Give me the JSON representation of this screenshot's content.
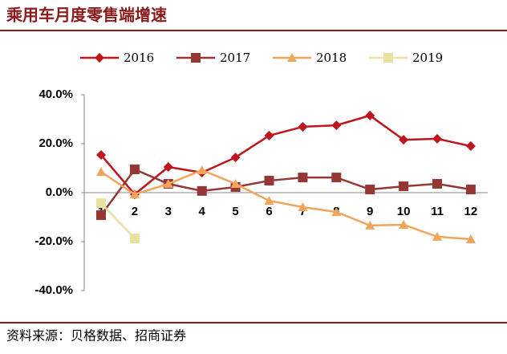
{
  "chart_data": {
    "type": "line",
    "title": "乘用车月度零售端增速",
    "source": "资料来源：贝格数据、招商证券",
    "categories": [
      "1",
      "2",
      "3",
      "4",
      "5",
      "6",
      "7",
      "8",
      "9",
      "10",
      "11",
      "12"
    ],
    "series": [
      {
        "name": "2016",
        "color": "#c0151c",
        "marker": "diamond",
        "values": [
          15.4,
          -0.7,
          10.5,
          8.2,
          14.4,
          23.3,
          26.9,
          27.5,
          31.5,
          21.6,
          22.0,
          19.0
        ]
      },
      {
        "name": "2017",
        "color": "#953735",
        "marker": "square",
        "values": [
          -9.2,
          9.5,
          3.6,
          0.7,
          2.3,
          4.9,
          6.2,
          6.2,
          1.3,
          2.6,
          3.6,
          1.3
        ]
      },
      {
        "name": "2018",
        "color": "#f0a55a",
        "marker": "triangle",
        "values": [
          8.5,
          -0.7,
          3.6,
          9.2,
          3.6,
          -3.3,
          -5.9,
          -7.9,
          -13.4,
          -13.1,
          -18.0,
          -19.0
        ]
      },
      {
        "name": "2019",
        "color": "#e8e2a0",
        "marker": "square",
        "values": [
          -4.3,
          -18.7,
          null,
          null,
          null,
          null,
          null,
          null,
          null,
          null,
          null,
          null
        ]
      }
    ],
    "ylim": [
      -40,
      40
    ],
    "yticks": [
      {
        "value": -40,
        "label": "-40.0%"
      },
      {
        "value": -20,
        "label": "-20.0%"
      },
      {
        "value": 0,
        "label": "0.0%"
      },
      {
        "value": 20,
        "label": "20.0%"
      },
      {
        "value": 40,
        "label": "40.0%"
      }
    ],
    "legend": "top"
  }
}
